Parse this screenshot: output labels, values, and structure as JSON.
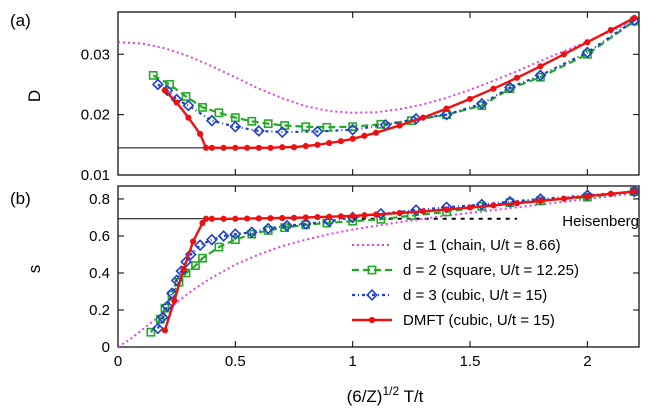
{
  "chart_data": [
    {
      "panel_label": "(a)",
      "type": "line",
      "ylabel": "D",
      "xlim": [
        0,
        2.22
      ],
      "ylim": [
        0.01,
        0.037
      ],
      "yticks": [
        "0.01",
        "0.02",
        "0.03"
      ],
      "ytick_values": [
        0.01,
        0.02,
        0.03
      ],
      "reference_line": {
        "x": [
          0,
          0.375
        ],
        "y": [
          0.0145,
          0.0145
        ]
      },
      "series": [
        {
          "key": "d1",
          "color": "#e040e0",
          "x": [
            0,
            0.1,
            0.2,
            0.3,
            0.4,
            0.5,
            0.6,
            0.7,
            0.8,
            0.9,
            1.0,
            1.1,
            1.2,
            1.3,
            1.4,
            1.5,
            1.6,
            1.7,
            1.8,
            1.9,
            2.0,
            2.1,
            2.2
          ],
          "y": [
            0.032,
            0.0318,
            0.031,
            0.0297,
            0.028,
            0.0262,
            0.0243,
            0.0227,
            0.0214,
            0.0206,
            0.0203,
            0.0204,
            0.0209,
            0.0217,
            0.0228,
            0.0241,
            0.0256,
            0.0272,
            0.0289,
            0.0305,
            0.0321,
            0.0338,
            0.0355
          ]
        },
        {
          "key": "d2",
          "color": "#22aa22",
          "x": [
            0.15,
            0.22,
            0.29,
            0.36,
            0.43,
            0.5,
            0.57,
            0.64,
            0.71,
            0.8,
            0.89,
            1.0,
            1.12,
            1.25,
            1.4,
            1.55,
            1.67,
            1.8,
            2.0,
            2.2
          ],
          "y": [
            0.0265,
            0.025,
            0.023,
            0.0212,
            0.0203,
            0.0195,
            0.0189,
            0.0185,
            0.0182,
            0.018,
            0.0179,
            0.018,
            0.0184,
            0.019,
            0.02,
            0.0215,
            0.0243,
            0.0262,
            0.03,
            0.0355
          ]
        },
        {
          "key": "d3",
          "color": "#1f3fcf",
          "x": [
            0.17,
            0.21,
            0.25,
            0.3,
            0.4,
            0.5,
            0.6,
            0.7,
            0.85,
            1.0,
            1.14,
            1.27,
            1.4,
            1.55,
            1.67,
            1.8,
            2.0,
            2.2
          ],
          "y": [
            0.025,
            0.024,
            0.0225,
            0.0215,
            0.019,
            0.018,
            0.0173,
            0.0171,
            0.0172,
            0.0175,
            0.0183,
            0.0193,
            0.02,
            0.0218,
            0.0245,
            0.0265,
            0.0303,
            0.0356
          ]
        },
        {
          "key": "dmft",
          "color": "#ee1111",
          "x": [
            0.2,
            0.25,
            0.3,
            0.35,
            0.375,
            0.4,
            0.45,
            0.5,
            0.55,
            0.6,
            0.65,
            0.7,
            0.75,
            0.8,
            0.85,
            0.9,
            0.95,
            1.0,
            1.05,
            1.1,
            1.2,
            1.3,
            1.4,
            1.5,
            1.6,
            1.7,
            1.8,
            1.9,
            2.0,
            2.1,
            2.2
          ],
          "y": [
            0.024,
            0.022,
            0.0195,
            0.0168,
            0.0145,
            0.0145,
            0.0145,
            0.0145,
            0.0145,
            0.0145,
            0.0145,
            0.0146,
            0.0146,
            0.0148,
            0.015,
            0.0153,
            0.0156,
            0.016,
            0.0165,
            0.017,
            0.0182,
            0.0195,
            0.021,
            0.0226,
            0.0243,
            0.0261,
            0.028,
            0.03,
            0.032,
            0.034,
            0.036
          ]
        }
      ]
    },
    {
      "panel_label": "(b)",
      "type": "line",
      "xlabel": "(6/Z)",
      "xlabel_exponent": "1/2",
      "xlabel_suffix": " T/t",
      "ylabel": "s",
      "xlim": [
        0,
        2.22
      ],
      "ylim": [
        0,
        0.87
      ],
      "xticks": [
        "0",
        "0.5",
        "1",
        "1.5",
        "2"
      ],
      "xtick_values": [
        0,
        0.5,
        1,
        1.5,
        2
      ],
      "yticks": [
        "0",
        "0.2",
        "0.4",
        "0.6",
        "0.8"
      ],
      "ytick_values": [
        0,
        0.2,
        0.4,
        0.6,
        0.8
      ],
      "reference_line": {
        "x": [
          0,
          0.375
        ],
        "y": [
          0.693,
          0.693
        ]
      },
      "heisenberg_line": {
        "x": [
          1.0,
          1.7
        ],
        "y": [
          0.693,
          0.693
        ]
      },
      "annotation": "Heisenberg",
      "series": [
        {
          "key": "d1",
          "color": "#e040e0",
          "x": [
            0,
            0.05,
            0.1,
            0.15,
            0.2,
            0.25,
            0.3,
            0.35,
            0.4,
            0.5,
            0.6,
            0.7,
            0.8,
            0.9,
            1.0,
            1.2,
            1.4,
            1.6,
            1.8,
            2.0,
            2.2
          ],
          "y": [
            0,
            0.04,
            0.09,
            0.14,
            0.19,
            0.24,
            0.29,
            0.335,
            0.375,
            0.445,
            0.5,
            0.545,
            0.58,
            0.61,
            0.635,
            0.675,
            0.71,
            0.74,
            0.77,
            0.8,
            0.83
          ]
        },
        {
          "key": "d2",
          "color": "#22aa22",
          "x": [
            0.14,
            0.18,
            0.2,
            0.23,
            0.26,
            0.29,
            0.33,
            0.36,
            0.43,
            0.5,
            0.57,
            0.64,
            0.71,
            0.8,
            0.89,
            1.0,
            1.12,
            1.25,
            1.4,
            1.55,
            1.67,
            1.8,
            2.0,
            2.2
          ],
          "y": [
            0.08,
            0.15,
            0.21,
            0.28,
            0.35,
            0.4,
            0.44,
            0.48,
            0.54,
            0.58,
            0.61,
            0.63,
            0.645,
            0.66,
            0.67,
            0.68,
            0.69,
            0.71,
            0.73,
            0.76,
            0.78,
            0.79,
            0.81,
            0.84
          ]
        },
        {
          "key": "d3",
          "color": "#1f3fcf",
          "x": [
            0.17,
            0.19,
            0.21,
            0.23,
            0.25,
            0.27,
            0.29,
            0.31,
            0.35,
            0.4,
            0.45,
            0.5,
            0.57,
            0.64,
            0.72,
            0.8,
            0.9,
            1.0,
            1.12,
            1.27,
            1.4,
            1.55,
            1.67,
            1.8,
            2.0,
            2.2
          ],
          "y": [
            0.1,
            0.16,
            0.22,
            0.29,
            0.36,
            0.41,
            0.46,
            0.5,
            0.55,
            0.58,
            0.6,
            0.61,
            0.62,
            0.64,
            0.655,
            0.665,
            0.68,
            0.7,
            0.72,
            0.74,
            0.755,
            0.77,
            0.785,
            0.8,
            0.82,
            0.84
          ]
        },
        {
          "key": "dmft",
          "color": "#ee1111",
          "x": [
            0.2,
            0.24,
            0.28,
            0.32,
            0.36,
            0.375,
            0.4,
            0.45,
            0.5,
            0.55,
            0.6,
            0.65,
            0.7,
            0.75,
            0.8,
            0.85,
            0.9,
            0.95,
            1.0,
            1.05,
            1.1,
            1.2,
            1.3,
            1.4,
            1.5,
            1.6,
            1.7,
            1.8,
            1.9,
            2.0,
            2.1,
            2.2
          ],
          "y": [
            0.09,
            0.25,
            0.42,
            0.57,
            0.67,
            0.693,
            0.693,
            0.693,
            0.693,
            0.694,
            0.695,
            0.696,
            0.697,
            0.698,
            0.7,
            0.702,
            0.704,
            0.706,
            0.709,
            0.712,
            0.716,
            0.724,
            0.733,
            0.743,
            0.754,
            0.765,
            0.777,
            0.789,
            0.802,
            0.815,
            0.828,
            0.841
          ]
        }
      ]
    }
  ],
  "legend": [
    {
      "key": "d1",
      "label": "d = 1 (chain, U/t = 8.66)",
      "color": "#e040e0"
    },
    {
      "key": "d2",
      "label": "d = 2 (square, U/t = 12.25)",
      "color": "#22aa22"
    },
    {
      "key": "d3",
      "label": "d = 3 (cubic, U/t = 15)",
      "color": "#1f3fcf"
    },
    {
      "key": "dmft",
      "label": "DMFT (cubic, U/t = 15)",
      "color": "#ee1111"
    }
  ]
}
